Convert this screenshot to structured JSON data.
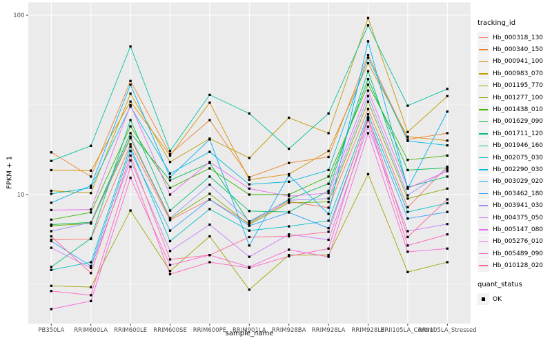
{
  "chart_data": {
    "type": "line",
    "title": "",
    "xlabel": "sample_name",
    "ylabel": "FPKM + 1",
    "y_scale": "log10",
    "y_ticks": [
      100,
      10
    ],
    "y_minor_ticks": [
      31.62,
      3.162
    ],
    "ylim": [
      1.9,
      111
    ],
    "grid": true,
    "legend_position": "right",
    "categories": [
      "PB350LA",
      "RRIM600LA",
      "RRIM600LE",
      "RRIM600SE",
      "RRIM600PE",
      "RRIM901LA",
      "RRIM928BA",
      "RRIM928LA",
      "RRIM928LE",
      "RRII105LA_Control",
      "RRII105LA_Stressed"
    ],
    "series": [
      {
        "name": "Hb_000318_130",
        "color": "#F8766D",
        "values": [
          5.6,
          5.65,
          19.1,
          7.2,
          9.4,
          6.9,
          9.15,
          8.45,
          30,
          8.5,
          14.3
        ]
      },
      {
        "name": "Hb_000340_150",
        "color": "#EA8331",
        "values": [
          17.2,
          12.6,
          43,
          16.8,
          26,
          12.5,
          15,
          16.2,
          60,
          20.3,
          22
        ]
      },
      {
        "name": "Hb_000941_100",
        "color": "#D89000",
        "values": [
          13.7,
          13.6,
          33,
          16.5,
          32.5,
          12.1,
          13,
          17.5,
          54,
          21,
          20
        ]
      },
      {
        "name": "Hb_000983_070",
        "color": "#C09B00",
        "values": [
          10.5,
          10.2,
          36.5,
          15.2,
          20.5,
          16,
          26.8,
          22,
          96.4,
          22.3,
          35.4
        ]
      },
      {
        "name": "Hb_001195_770",
        "color": "#A3A500",
        "values": [
          3.1,
          3.05,
          8.15,
          3.75,
          5.85,
          2.95,
          4.6,
          4.6,
          13,
          3.7,
          4.2
        ]
      },
      {
        "name": "Hb_001277_100",
        "color": "#7CAE00",
        "values": [
          6.7,
          6.9,
          20.6,
          7.3,
          10.1,
          6.8,
          9.0,
          9.1,
          33,
          9.5,
          10.8
        ]
      },
      {
        "name": "Hb_001438_010",
        "color": "#39B600",
        "values": [
          7.25,
          7.95,
          24,
          10.9,
          14.0,
          10.0,
          10.0,
          12.6,
          41,
          15.6,
          16.5
        ]
      },
      {
        "name": "Hb_001629_090",
        "color": "#00BB4E",
        "values": [
          6.8,
          7.0,
          22,
          12.0,
          15.0,
          7.0,
          9.4,
          11.5,
          44,
          13.7,
          14.1
        ]
      },
      {
        "name": "Hb_001711_120",
        "color": "#00BF7D",
        "values": [
          3.95,
          5.7,
          26,
          8.15,
          12.6,
          8.1,
          8.0,
          10.5,
          48.7,
          11.0,
          12.6
        ]
      },
      {
        "name": "Hb_001946_160",
        "color": "#00C1A3",
        "values": [
          15.4,
          18.7,
          67,
          17.5,
          36,
          28.3,
          18,
          28.3,
          87.7,
          31.3,
          38.8
        ]
      },
      {
        "name": "Hb_002075_030",
        "color": "#00BFC4",
        "values": [
          3.8,
          4.2,
          18.5,
          5.5,
          8.3,
          6.3,
          6.65,
          7.15,
          28,
          8.0,
          8.95
        ]
      },
      {
        "name": "Hb_002290_030",
        "color": "#00BADE",
        "values": [
          10.1,
          10.9,
          31,
          13.1,
          17.3,
          11.4,
          11.8,
          13.7,
          58,
          19.9,
          18.8
        ]
      },
      {
        "name": "Hb_003029_020",
        "color": "#00B0F6",
        "values": [
          9.0,
          11.2,
          41,
          12.5,
          20.3,
          5.2,
          12.8,
          7.8,
          71.5,
          10.8,
          29
        ]
      },
      {
        "name": "Hb_003462_180",
        "color": "#35A2FF",
        "values": [
          5.5,
          4.0,
          17.5,
          6.3,
          9.4,
          6.7,
          7.95,
          6.5,
          26.5,
          7.35,
          8.0
        ]
      },
      {
        "name": "Hb_003941_030",
        "color": "#9590FF",
        "values": [
          6.25,
          7.0,
          21,
          7.4,
          11.35,
          7.1,
          9.3,
          9.5,
          35.4,
          9.9,
          13.9
        ]
      },
      {
        "name": "Hb_004375_050",
        "color": "#C77CFF",
        "values": [
          5.05,
          3.9,
          15.5,
          4.85,
          6.8,
          4.5,
          6.0,
          5.6,
          23.9,
          6.25,
          6.85
        ]
      },
      {
        "name": "Hb_005147_080",
        "color": "#E76BF3",
        "values": [
          8.2,
          8.25,
          31.5,
          10.0,
          15.2,
          10.8,
          9.8,
          10.2,
          38,
          10.85,
          13.5
        ]
      },
      {
        "name": "Hb_005276_010",
        "color": "#FA62DB",
        "values": [
          2.3,
          2.55,
          12.4,
          4.05,
          4.6,
          3.95,
          4.93,
          4.5,
          22,
          4.8,
          5.0
        ]
      },
      {
        "name": "Hb_005489_090",
        "color": "#FF62BC",
        "values": [
          2.9,
          2.75,
          14.3,
          3.6,
          4.2,
          3.9,
          4.53,
          5.0,
          26,
          5.2,
          6.0
        ]
      },
      {
        "name": "Hb_010128_020",
        "color": "#FF6A98",
        "values": [
          5.85,
          3.65,
          16.5,
          4.35,
          4.6,
          5.8,
          5.85,
          6.2,
          27,
          5.8,
          9.4
        ]
      }
    ],
    "legend": {
      "series_title": "tracking_id",
      "shape_title": "quant_status",
      "shape_label": "OK"
    },
    "style": {
      "panel_bg": "#EBEBEB",
      "grid_color": "#FFFFFF",
      "point_color": "#000000",
      "tick_label_color": "#4D4D4D",
      "legend_key_bg": "#F2F2F2"
    }
  }
}
